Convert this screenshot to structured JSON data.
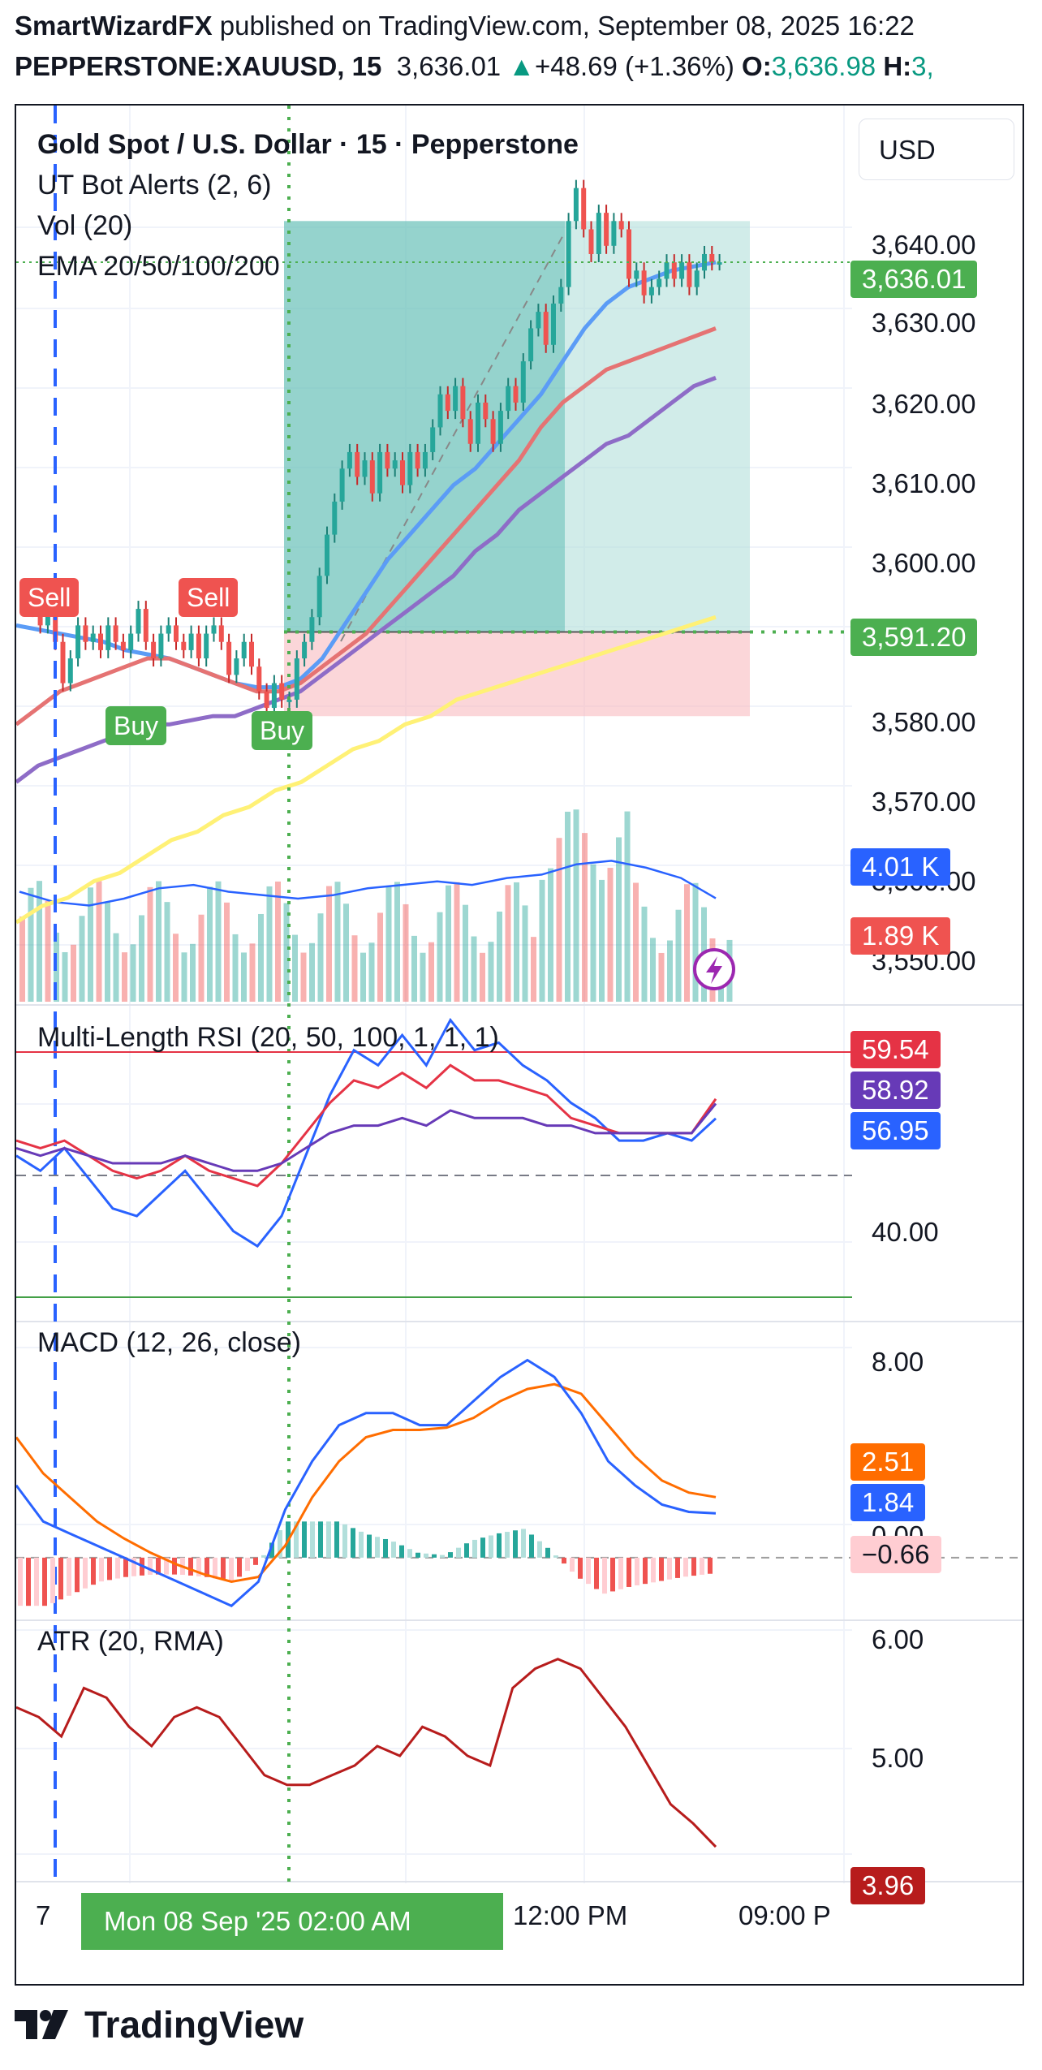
{
  "header": {
    "author": "SmartWizardFX",
    "published_text": " published on TradingView.com, September 08, 2025 16:22",
    "symbol": "PEPPERSTONE:XAUUSD, 15",
    "last": "3,636.01",
    "arrow": "▲",
    "change": "+48.69 (+1.36%)",
    "o_label": "O:",
    "o_value": "3,636.98",
    "h_label": "H:",
    "h_value": "3,"
  },
  "legend": {
    "title": "Gold Spot / U.S. Dollar · 15 · Pepperstone",
    "ind1": "UT Bot Alerts (2, 6)",
    "ind2": "Vol (20)",
    "ind3": "EMA 20/50/100/200",
    "rsi": "Multi-Length RSI (20, 50, 100, 1, 1, 1)",
    "macd": "MACD (12, 26, close)",
    "atr": "ATR (20, RMA)"
  },
  "currency": "USD",
  "signals": {
    "sell1": "Sell",
    "sell2": "Sell",
    "buy1": "Buy",
    "buy2": "Buy"
  },
  "price_axis": [
    "3,640.00",
    "3,630.00",
    "3,620.00",
    "3,610.00",
    "3,600.00",
    "3,580.00",
    "3,570.00",
    "3,560.00",
    "3,550.00"
  ],
  "rsi_axis": [
    "40.00"
  ],
  "macd_axis": [
    "8.00",
    "0.00"
  ],
  "atr_axis": [
    "6.00",
    "5.00"
  ],
  "badges": {
    "last_price": "3,636.01",
    "entry_price": "3,591.20",
    "vol_ma": "4.01 K",
    "vol": "1.89 K",
    "rsi1": "59.54",
    "rsi2": "58.92",
    "rsi3": "56.95",
    "macd_signal": "2.51",
    "macd_line": "1.84",
    "macd_hist": "−0.66",
    "atr": "3.96"
  },
  "time_axis": {
    "left": "7",
    "selected": "Mon 08 Sep '25   02:00 AM",
    "mid": "12:00 PM",
    "right": "09:00 P"
  },
  "footer": {
    "brand": "TradingView"
  },
  "colors": {
    "up": "#26a69a",
    "down": "#ef5350",
    "ema20": "#5b9cf6",
    "ema50": "#e57373",
    "ema100": "#8e6cc7",
    "ema200": "#fff176",
    "green": "#4caf50",
    "rsi_red": "#e53345",
    "rsi_purple": "#673ab7",
    "rsi_blue": "#2962ff",
    "macd_orange": "#ff6d00",
    "atr": "#b71c1c"
  },
  "chart_data": [
    {
      "type": "candlestick",
      "title": "Gold Spot / U.S. Dollar · 15 · Pepperstone",
      "series": [
        {
          "name": "XAUUSD",
          "close": [
            3595,
            3594,
            3592,
            3596,
            3590,
            3585,
            3588,
            3592,
            3590,
            3591,
            3589,
            3592,
            3590,
            3589,
            3591,
            3594,
            3590,
            3588,
            3591,
            3592,
            3590,
            3589,
            3591,
            3588,
            3591,
            3592,
            3590,
            3586,
            3588,
            3590,
            3587,
            3584,
            3582,
            3585,
            3583,
            3583,
            3588,
            3590,
            3593,
            3598,
            3603,
            3607,
            3611,
            3613,
            3610,
            3612,
            3608,
            3613,
            3611,
            3612,
            3609,
            3613,
            3611,
            3613,
            3616,
            3620,
            3618,
            3621,
            3617,
            3614,
            3619,
            3617,
            3614,
            3618,
            3621,
            3619,
            3624,
            3628,
            3630,
            3626,
            3631,
            3633,
            3641,
            3645,
            3640,
            3637,
            3642,
            3638,
            3641,
            3640,
            3634,
            3635,
            3632,
            3633,
            3634,
            3636,
            3634,
            3636,
            3633,
            3635,
            3637,
            3636,
            3636.01
          ]
        },
        {
          "name": "EMA 20",
          "values": [
            3592,
            3591.5,
            3591,
            3590.5,
            3590,
            3589,
            3588.5,
            3588,
            3587,
            3586,
            3585,
            3584.5,
            3584.5,
            3585.5,
            3588,
            3592,
            3596,
            3600,
            3603,
            3606,
            3609,
            3611,
            3614,
            3617,
            3620,
            3624,
            3628,
            3631,
            3633,
            3634,
            3635,
            3635.5,
            3636
          ]
        },
        {
          "name": "EMA 50",
          "values": [
            3580,
            3582,
            3584,
            3585,
            3586,
            3587,
            3588,
            3588,
            3587,
            3586,
            3585,
            3584,
            3584,
            3585,
            3587,
            3589,
            3591,
            3594,
            3597,
            3600,
            3603,
            3606,
            3609,
            3612,
            3616,
            3619,
            3621,
            3623,
            3624,
            3625,
            3626,
            3627,
            3628
          ]
        },
        {
          "name": "EMA 100",
          "values": [
            3573,
            3575,
            3576,
            3577,
            3578,
            3579,
            3580,
            3580,
            3580.5,
            3581,
            3581,
            3582,
            3583,
            3584,
            3586,
            3588,
            3590,
            3592,
            3594,
            3596,
            3598,
            3601,
            3603,
            3606,
            3608,
            3610,
            3612,
            3614,
            3615,
            3617,
            3619,
            3621,
            3622
          ]
        },
        {
          "name": "EMA 200",
          "values": [
            3556,
            3558,
            3559,
            3561,
            3562,
            3564,
            3566,
            3567,
            3569,
            3570,
            3572,
            3573,
            3575,
            3577,
            3578,
            3580,
            3581,
            3583,
            3584,
            3585,
            3586,
            3587,
            3588,
            3589,
            3590,
            3591,
            3592,
            3593
          ]
        }
      ],
      "position": {
        "entry": 3591.2,
        "target": 3641,
        "stop": 3581
      },
      "ylim": [
        3546,
        3655
      ]
    },
    {
      "type": "bar",
      "title": "Vol (20)",
      "unit": "K",
      "last_volume": 1.89,
      "volume_ma": 4.01
    },
    {
      "type": "line",
      "title": "Multi-Length RSI (20, 50, 100, 1, 1, 1)",
      "series": [
        {
          "name": "RSI 20",
          "values": [
            52,
            50,
            53,
            49,
            45,
            44,
            47,
            50,
            46,
            42,
            40,
            44,
            52,
            60,
            66,
            64,
            68,
            64,
            70,
            66,
            67,
            64,
            62,
            59,
            57,
            54,
            54,
            55,
            54,
            56.95
          ]
        },
        {
          "name": "RSI 50",
          "values": [
            54,
            53,
            54,
            52,
            50,
            49,
            50,
            52,
            50,
            49,
            48,
            51,
            55,
            59,
            62,
            61,
            63,
            61,
            64,
            62,
            62,
            61,
            60,
            57,
            56,
            55,
            55,
            55,
            55,
            59.54
          ]
        },
        {
          "name": "RSI 100",
          "values": [
            53,
            52,
            53,
            52,
            51,
            51,
            51,
            52,
            51,
            50,
            50,
            51,
            53,
            55,
            56,
            56,
            57,
            56,
            58,
            57,
            57,
            57,
            56,
            56,
            55,
            55,
            55,
            55,
            55,
            58.92
          ]
        }
      ],
      "ylim": [
        30,
        72
      ]
    },
    {
      "type": "line",
      "title": "MACD (12, 26, close)",
      "series": [
        {
          "name": "MACD",
          "values": [
            3,
            1.5,
            1,
            0.5,
            0,
            -0.5,
            -1,
            -1.5,
            -2,
            -1,
            2,
            4,
            5.5,
            6,
            6,
            5.5,
            5.5,
            6.5,
            7.5,
            8.2,
            7.5,
            6,
            4,
            3,
            2.2,
            1.9,
            1.84
          ]
        },
        {
          "name": "Signal",
          "values": [
            5,
            3.5,
            2.5,
            1.5,
            0.8,
            0.2,
            -0.3,
            -0.7,
            -1,
            -0.8,
            0.5,
            2.5,
            4,
            5,
            5.3,
            5.3,
            5.4,
            5.8,
            6.5,
            7,
            7.2,
            6.8,
            5.5,
            4.2,
            3.2,
            2.7,
            2.51
          ]
        },
        {
          "name": "Histogram",
          "last": -0.66
        }
      ],
      "ylim": [
        -2.6,
        9.8
      ]
    },
    {
      "type": "line",
      "title": "ATR (20, RMA)",
      "series": [
        {
          "name": "ATR",
          "values": [
            5.4,
            5.3,
            5.1,
            5.6,
            5.5,
            5.2,
            5.0,
            5.3,
            5.4,
            5.3,
            5.0,
            4.7,
            4.6,
            4.6,
            4.7,
            4.8,
            5.0,
            4.9,
            5.2,
            5.1,
            4.9,
            4.8,
            5.6,
            5.8,
            5.9,
            5.8,
            5.5,
            5.2,
            4.8,
            4.4,
            4.2,
            3.96
          ]
        }
      ],
      "ylim": [
        3.6,
        6.3
      ]
    }
  ]
}
